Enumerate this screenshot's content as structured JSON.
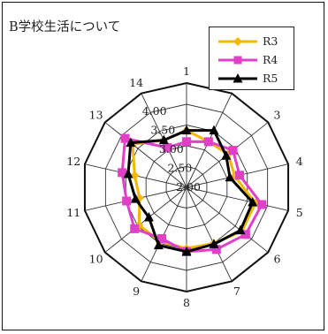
{
  "header": {
    "title": "B学校生活について"
  },
  "chart_data": {
    "type": "radar",
    "axes": [
      "1",
      "2",
      "3",
      "4",
      "5",
      "6",
      "7",
      "8",
      "9",
      "10",
      "11",
      "12",
      "13",
      "14"
    ],
    "rlim": [
      2.0,
      4.0
    ],
    "radial_ticks": [
      "2.00",
      "2.50",
      "3.00",
      "3.50",
      "4.00"
    ],
    "grid": true,
    "legend": "top-right",
    "series": [
      {
        "name": "R3",
        "color": "#f5b700",
        "marker": "diamond",
        "values": [
          3.37,
          3.22,
          3.28,
          3.19,
          3.7,
          3.7,
          3.5,
          3.47,
          3.45,
          3.46,
          3.16,
          3.28,
          3.66,
          3.26
        ]
      },
      {
        "name": "R4",
        "color": "#e040c8",
        "marker": "square",
        "values": [
          3.1,
          3.22,
          3.43,
          3.31,
          3.86,
          3.82,
          3.66,
          3.55,
          3.37,
          3.6,
          3.48,
          3.59,
          3.89,
          3.06
        ]
      },
      {
        "name": "R5",
        "color": "#000000",
        "marker": "triangle",
        "values": [
          3.37,
          3.52,
          3.22,
          3.07,
          3.63,
          3.66,
          3.52,
          3.55,
          3.55,
          3.16,
          3.26,
          3.44,
          3.72,
          3.26
        ]
      }
    ]
  }
}
